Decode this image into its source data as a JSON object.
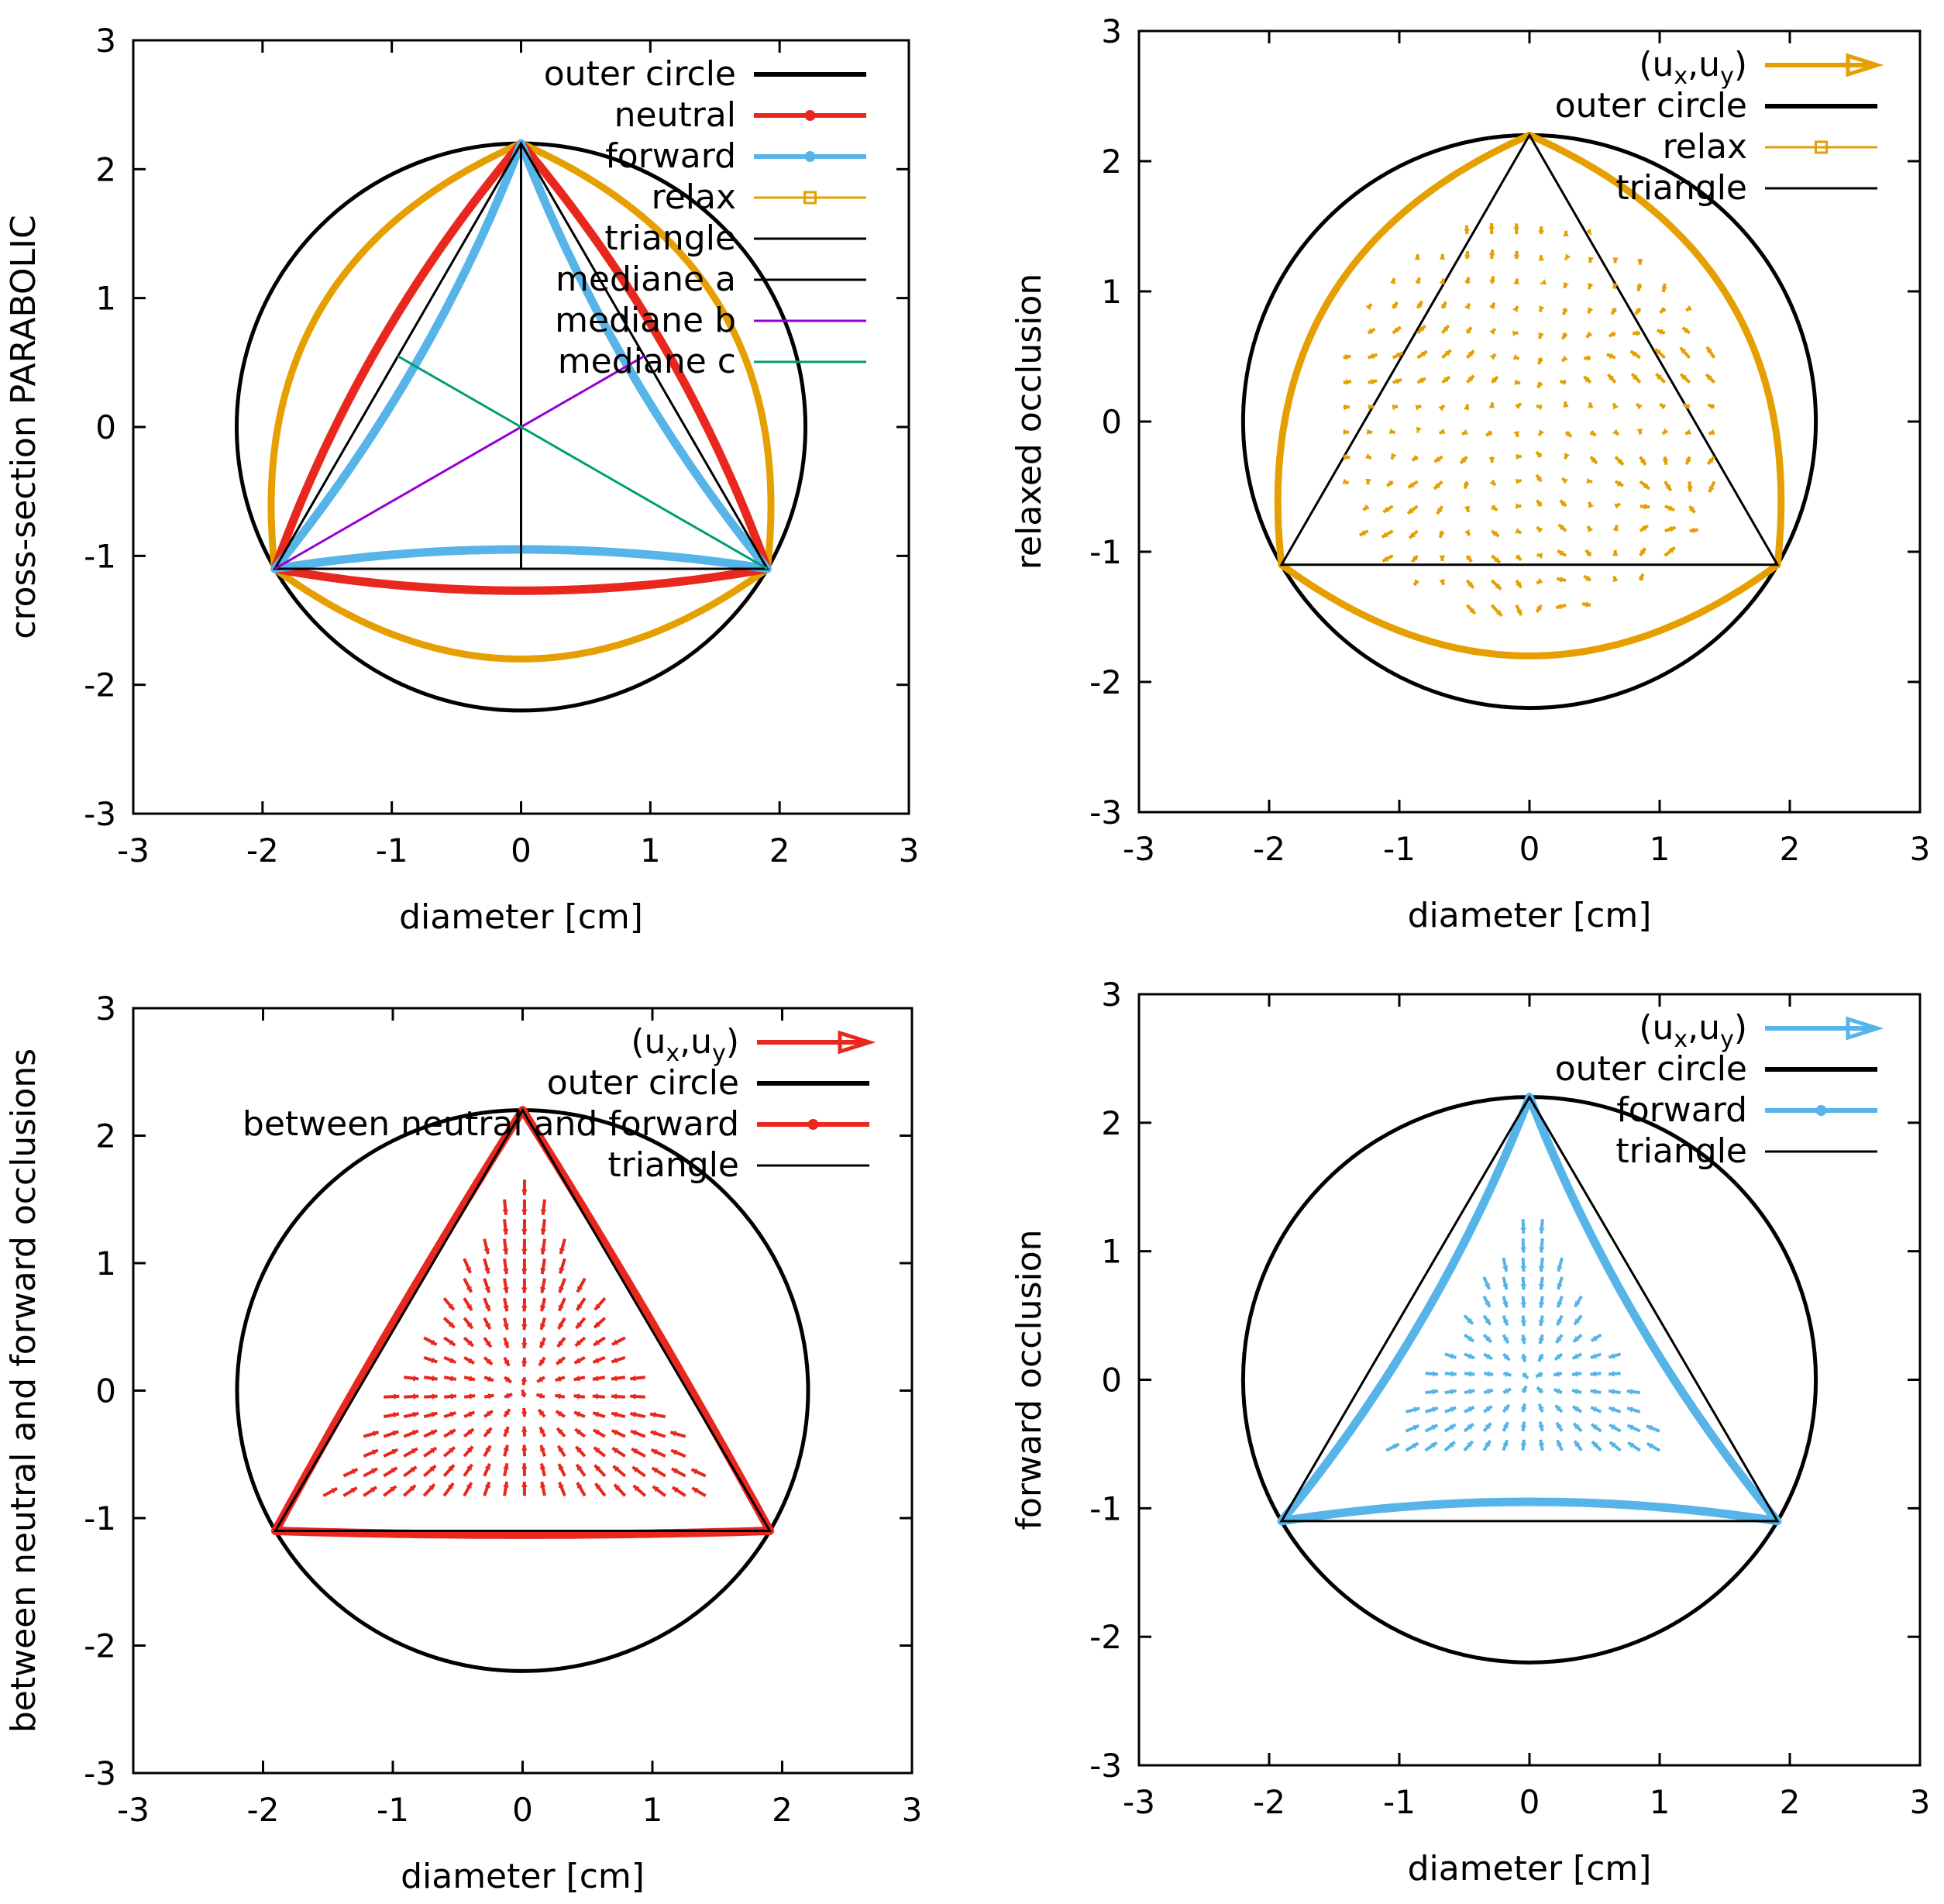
{
  "colors": {
    "black": "#000000",
    "neutral": "#e8281e",
    "forward": "#56b4e9",
    "relax": "#e69f00",
    "mediane_b": "#9400d3",
    "mediane_c": "#009e73"
  },
  "chart_data": [
    {
      "id": "tl",
      "type": "line",
      "title": "",
      "xlabel": "diameter [cm]",
      "ylabel": "cross-section PARABOLIC",
      "xlim": [
        -3,
        3
      ],
      "ylim": [
        -3,
        3
      ],
      "xticks": [
        "-3",
        "-2",
        "-1",
        "0",
        "1",
        "2",
        "3"
      ],
      "yticks": [
        "3",
        "2",
        "1",
        "0",
        "-1",
        "-2",
        "-3"
      ],
      "legend_position": "top-right",
      "legend": [
        {
          "label": "outer circle",
          "color_key": "black",
          "style": "thick"
        },
        {
          "label": "neutral",
          "color_key": "neutral",
          "style": "thick-dot"
        },
        {
          "label": "forward",
          "color_key": "forward",
          "style": "thick-dot"
        },
        {
          "label": "relax",
          "color_key": "relax",
          "style": "square"
        },
        {
          "label": "triangle",
          "color_key": "black",
          "style": "thin"
        },
        {
          "label": "mediane a",
          "color_key": "black",
          "style": "thin"
        },
        {
          "label": "mediane b",
          "color_key": "mediane_b",
          "style": "thin"
        },
        {
          "label": "mediane c",
          "color_key": "mediane_c",
          "style": "thin"
        }
      ],
      "series": [
        {
          "name": "outer circle",
          "kind": "circle",
          "radius": 2.2
        },
        {
          "name": "relax",
          "kind": "relax",
          "bottom_y": -1.8
        },
        {
          "name": "neutral",
          "kind": "bulge",
          "bulge": -0.17
        },
        {
          "name": "forward",
          "kind": "bulge",
          "bulge": 0.15
        },
        {
          "name": "triangle",
          "kind": "triangle",
          "vertices": [
            [
              0,
              2.2
            ],
            [
              -1.905,
              -1.1
            ],
            [
              1.905,
              -1.1
            ]
          ]
        },
        {
          "name": "mediane a",
          "kind": "segment",
          "from": [
            0,
            2.2
          ],
          "to": [
            0,
            -1.1
          ]
        },
        {
          "name": "mediane b",
          "kind": "segment",
          "from": [
            -1.905,
            -1.1
          ],
          "to": [
            0.953,
            0.55
          ]
        },
        {
          "name": "mediane c",
          "kind": "segment",
          "from": [
            1.905,
            -1.1
          ],
          "to": [
            -0.953,
            0.55
          ]
        }
      ]
    },
    {
      "id": "tr",
      "type": "vector",
      "title": "",
      "xlabel": "diameter [cm]",
      "ylabel": "relaxed occlusion",
      "xlim": [
        -3,
        3
      ],
      "ylim": [
        -3,
        3
      ],
      "xticks": [
        "-3",
        "-2",
        "-1",
        "0",
        "1",
        "2",
        "3"
      ],
      "yticks": [
        "3",
        "2",
        "1",
        "0",
        "-1",
        "-2",
        "-3"
      ],
      "legend_position": "top-right",
      "legend": [
        {
          "label": "(u",
          "sub1": "x",
          "mid": ",u",
          "sub2": "y",
          "end": ")",
          "color_key": "relax",
          "style": "arrow"
        },
        {
          "label": "outer circle",
          "color_key": "black",
          "style": "thick"
        },
        {
          "label": "relax",
          "color_key": "relax",
          "style": "square"
        },
        {
          "label": "triangle",
          "color_key": "black",
          "style": "thin"
        }
      ],
      "series": [
        {
          "name": "outer circle",
          "kind": "circle",
          "radius": 2.2
        },
        {
          "name": "relax",
          "kind": "relax",
          "bottom_y": -1.8
        },
        {
          "name": "triangle",
          "kind": "triangle",
          "vertices": [
            [
              0,
              2.2
            ],
            [
              -1.905,
              -1.1
            ],
            [
              1.905,
              -1.1
            ]
          ]
        },
        {
          "name": "(ux,uy)",
          "kind": "field",
          "region": "relax",
          "mode": "swirl",
          "spacing": 0.19,
          "scale": 0.1
        }
      ]
    },
    {
      "id": "bl",
      "type": "vector",
      "title": "",
      "xlabel": "diameter [cm]",
      "ylabel": "between neutral and forward occlusions",
      "xlim": [
        -3,
        3
      ],
      "ylim": [
        -3,
        3
      ],
      "xticks": [
        "-3",
        "-2",
        "-1",
        "0",
        "1",
        "2",
        "3"
      ],
      "yticks": [
        "3",
        "2",
        "1",
        "0",
        "-1",
        "-2",
        "-3"
      ],
      "legend_position": "top-right",
      "legend": [
        {
          "label": "(u",
          "sub1": "x",
          "mid": ",u",
          "sub2": "y",
          "end": ")",
          "color_key": "neutral",
          "style": "arrow"
        },
        {
          "label": "outer circle",
          "color_key": "black",
          "style": "thick"
        },
        {
          "label": "between neutral and forward",
          "color_key": "neutral",
          "style": "thick-dot"
        },
        {
          "label": "triangle",
          "color_key": "black",
          "style": "thin"
        }
      ],
      "series": [
        {
          "name": "outer circle",
          "kind": "circle",
          "radius": 2.2
        },
        {
          "name": "between neutral and forward",
          "kind": "bulge",
          "bulge": -0.03
        },
        {
          "name": "triangle",
          "kind": "triangle",
          "vertices": [
            [
              0,
              2.2
            ],
            [
              -1.905,
              -1.1
            ],
            [
              1.905,
              -1.1
            ]
          ]
        },
        {
          "name": "(ux,uy)",
          "kind": "field",
          "region": "triangle",
          "mode": "inward",
          "spacing": 0.155,
          "scale": 0.12
        }
      ]
    },
    {
      "id": "br",
      "type": "vector",
      "title": "",
      "xlabel": "diameter [cm]",
      "ylabel": "forward occlusion",
      "xlim": [
        -3,
        3
      ],
      "ylim": [
        -3,
        3
      ],
      "xticks": [
        "-3",
        "-2",
        "-1",
        "0",
        "1",
        "2",
        "3"
      ],
      "yticks": [
        "3",
        "2",
        "1",
        "0",
        "-1",
        "-2",
        "-3"
      ],
      "legend_position": "top-right",
      "legend": [
        {
          "label": "(u",
          "sub1": "x",
          "mid": ",u",
          "sub2": "y",
          "end": ")",
          "color_key": "forward",
          "style": "arrow"
        },
        {
          "label": "outer circle",
          "color_key": "black",
          "style": "thick"
        },
        {
          "label": "forward",
          "color_key": "forward",
          "style": "thick-dot"
        },
        {
          "label": "triangle",
          "color_key": "black",
          "style": "thin"
        }
      ],
      "series": [
        {
          "name": "outer circle",
          "kind": "circle",
          "radius": 2.2
        },
        {
          "name": "forward",
          "kind": "bulge",
          "bulge": 0.15
        },
        {
          "name": "triangle",
          "kind": "triangle",
          "vertices": [
            [
              0,
              2.2
            ],
            [
              -1.905,
              -1.1
            ],
            [
              1.905,
              -1.1
            ]
          ]
        },
        {
          "name": "(ux,uy)",
          "kind": "field",
          "region": "inner",
          "mode": "inward",
          "spacing": 0.15,
          "scale": 0.11
        }
      ]
    }
  ]
}
